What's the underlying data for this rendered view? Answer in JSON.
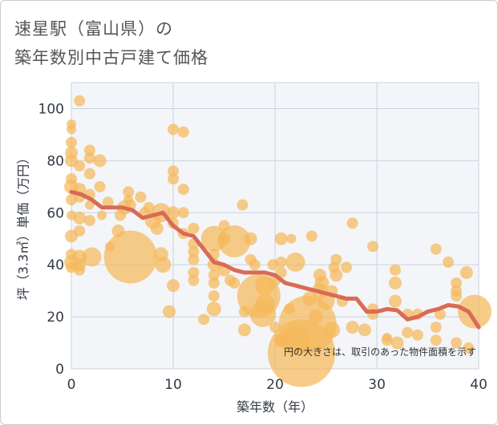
{
  "title_line1": "速星駅（富山県）の",
  "title_line2": "築年数別中古戸建て価格",
  "chart_data": {
    "type": "scatter",
    "xlabel": "築年数（年）",
    "ylabel": "坪（3.3㎡）単価（万円）",
    "xlim": [
      0,
      40
    ],
    "ylim": [
      0,
      110
    ],
    "x_ticks": [
      0,
      10,
      20,
      30,
      40
    ],
    "y_ticks": [
      0,
      20,
      40,
      60,
      80,
      100
    ],
    "grid": true,
    "note": "円の大きさは、取引のあった物件面積を示す",
    "colors": {
      "bubble": "#f5b85a",
      "line": "#d96b55",
      "grid": "#c9d4e0",
      "plot_bg": "#f3f5f8"
    },
    "trend": {
      "x": [
        0,
        1,
        2,
        3,
        4,
        5,
        6,
        7,
        8,
        9,
        10,
        11,
        12,
        13,
        14,
        15,
        16,
        17,
        18,
        19,
        20,
        21,
        22,
        23,
        24,
        25,
        26,
        27,
        28,
        29,
        30,
        31,
        32,
        33,
        34,
        35,
        36,
        37,
        38,
        39,
        40
      ],
      "y": [
        68,
        67,
        65,
        62,
        62,
        62,
        61,
        58,
        59,
        60,
        55,
        52,
        51,
        46,
        41,
        40,
        38,
        37,
        37,
        37,
        36,
        33,
        32,
        31,
        30,
        29,
        28,
        27,
        27,
        22,
        22,
        23,
        22.5,
        19,
        20,
        22,
        23,
        24.5,
        24,
        22,
        16
      ]
    },
    "points": [
      {
        "x": 0,
        "y": 94,
        "s": 6
      },
      {
        "x": 0,
        "y": 92,
        "s": 6
      },
      {
        "x": 0,
        "y": 87,
        "s": 7
      },
      {
        "x": 0,
        "y": 83,
        "s": 8
      },
      {
        "x": 0,
        "y": 80,
        "s": 8
      },
      {
        "x": 0,
        "y": 73,
        "s": 7
      },
      {
        "x": 0,
        "y": 70,
        "s": 9
      },
      {
        "x": 0,
        "y": 65,
        "s": 7
      },
      {
        "x": 0,
        "y": 59,
        "s": 6
      },
      {
        "x": 0,
        "y": 51,
        "s": 8
      },
      {
        "x": 0,
        "y": 44,
        "s": 7
      },
      {
        "x": 0,
        "y": 41,
        "s": 9
      },
      {
        "x": 0,
        "y": 39,
        "s": 7
      },
      {
        "x": 0.8,
        "y": 103,
        "s": 7
      },
      {
        "x": 0.8,
        "y": 78,
        "s": 7
      },
      {
        "x": 0.8,
        "y": 69,
        "s": 8
      },
      {
        "x": 0.8,
        "y": 66,
        "s": 7
      },
      {
        "x": 0.8,
        "y": 58,
        "s": 8
      },
      {
        "x": 0.8,
        "y": 53,
        "s": 7
      },
      {
        "x": 0.8,
        "y": 43,
        "s": 9
      },
      {
        "x": 0.8,
        "y": 40,
        "s": 8
      },
      {
        "x": 0.8,
        "y": 38,
        "s": 7
      },
      {
        "x": 1.8,
        "y": 84,
        "s": 7
      },
      {
        "x": 1.8,
        "y": 81,
        "s": 7
      },
      {
        "x": 1.8,
        "y": 75,
        "s": 7
      },
      {
        "x": 1.8,
        "y": 67,
        "s": 7
      },
      {
        "x": 1.8,
        "y": 63,
        "s": 6
      },
      {
        "x": 1.8,
        "y": 57,
        "s": 7
      },
      {
        "x": 2,
        "y": 43,
        "s": 12
      },
      {
        "x": 2.8,
        "y": 80,
        "s": 8
      },
      {
        "x": 2.8,
        "y": 70,
        "s": 7
      },
      {
        "x": 3,
        "y": 59,
        "s": 6
      },
      {
        "x": 3.6,
        "y": 64,
        "s": 7
      },
      {
        "x": 3.8,
        "y": 47,
        "s": 6
      },
      {
        "x": 4.6,
        "y": 53,
        "s": 8
      },
      {
        "x": 4.8,
        "y": 59,
        "s": 7
      },
      {
        "x": 5.2,
        "y": 62,
        "s": 9
      },
      {
        "x": 5.6,
        "y": 65,
        "s": 6
      },
      {
        "x": 5.6,
        "y": 68,
        "s": 7
      },
      {
        "x": 5.8,
        "y": 63,
        "s": 7
      },
      {
        "x": 5.8,
        "y": 43,
        "s": 33
      },
      {
        "x": 6.8,
        "y": 66,
        "s": 7
      },
      {
        "x": 7.2,
        "y": 60,
        "s": 7
      },
      {
        "x": 7.6,
        "y": 62,
        "s": 7
      },
      {
        "x": 8,
        "y": 57,
        "s": 10
      },
      {
        "x": 8.4,
        "y": 54,
        "s": 8
      },
      {
        "x": 8.8,
        "y": 60,
        "s": 12
      },
      {
        "x": 8.8,
        "y": 44,
        "s": 9
      },
      {
        "x": 9,
        "y": 40,
        "s": 10
      },
      {
        "x": 9.6,
        "y": 22,
        "s": 8
      },
      {
        "x": 10,
        "y": 92,
        "s": 7
      },
      {
        "x": 10,
        "y": 76,
        "s": 7
      },
      {
        "x": 10,
        "y": 73,
        "s": 7
      },
      {
        "x": 10,
        "y": 60,
        "s": 8
      },
      {
        "x": 10,
        "y": 56,
        "s": 7
      },
      {
        "x": 10,
        "y": 32,
        "s": 8
      },
      {
        "x": 11,
        "y": 91,
        "s": 7
      },
      {
        "x": 11,
        "y": 69,
        "s": 7
      },
      {
        "x": 11,
        "y": 60,
        "s": 7
      },
      {
        "x": 11,
        "y": 52,
        "s": 7
      },
      {
        "x": 12,
        "y": 54,
        "s": 7
      },
      {
        "x": 12,
        "y": 48,
        "s": 7
      },
      {
        "x": 12,
        "y": 45,
        "s": 7
      },
      {
        "x": 12,
        "y": 42,
        "s": 7
      },
      {
        "x": 12,
        "y": 37,
        "s": 7
      },
      {
        "x": 12,
        "y": 34,
        "s": 7
      },
      {
        "x": 13,
        "y": 19,
        "s": 7
      },
      {
        "x": 14,
        "y": 50,
        "s": 16
      },
      {
        "x": 14,
        "y": 44,
        "s": 7
      },
      {
        "x": 14,
        "y": 40,
        "s": 8
      },
      {
        "x": 14,
        "y": 36,
        "s": 7
      },
      {
        "x": 14,
        "y": 33,
        "s": 7
      },
      {
        "x": 14,
        "y": 28,
        "s": 7
      },
      {
        "x": 14,
        "y": 23,
        "s": 9
      },
      {
        "x": 15,
        "y": 55,
        "s": 7
      },
      {
        "x": 15,
        "y": 50,
        "s": 8
      },
      {
        "x": 15,
        "y": 38,
        "s": 8
      },
      {
        "x": 15.6,
        "y": 34,
        "s": 7
      },
      {
        "x": 16,
        "y": 49,
        "s": 20
      },
      {
        "x": 16,
        "y": 33,
        "s": 7
      },
      {
        "x": 16.8,
        "y": 63,
        "s": 7
      },
      {
        "x": 17,
        "y": 15,
        "s": 8
      },
      {
        "x": 17,
        "y": 22,
        "s": 7
      },
      {
        "x": 17.6,
        "y": 50,
        "s": 8
      },
      {
        "x": 17.6,
        "y": 42,
        "s": 7
      },
      {
        "x": 18,
        "y": 40,
        "s": 7
      },
      {
        "x": 18.4,
        "y": 28,
        "s": 27
      },
      {
        "x": 18.8,
        "y": 21,
        "s": 16
      },
      {
        "x": 19,
        "y": 32,
        "s": 12
      },
      {
        "x": 19,
        "y": 25,
        "s": 12
      },
      {
        "x": 19.8,
        "y": 40,
        "s": 7
      },
      {
        "x": 20,
        "y": 34,
        "s": 7
      },
      {
        "x": 20,
        "y": 16,
        "s": 7
      },
      {
        "x": 20.6,
        "y": 11,
        "s": 7
      },
      {
        "x": 20.6,
        "y": 50,
        "s": 8
      },
      {
        "x": 20.6,
        "y": 41,
        "s": 7
      },
      {
        "x": 20.6,
        "y": 37,
        "s": 7
      },
      {
        "x": 20.6,
        "y": 11,
        "s": 9
      },
      {
        "x": 21.4,
        "y": 23,
        "s": 7
      },
      {
        "x": 21.6,
        "y": 50,
        "s": 6
      },
      {
        "x": 22,
        "y": 41,
        "s": 12
      },
      {
        "x": 22,
        "y": 11,
        "s": 18
      },
      {
        "x": 22.6,
        "y": 6,
        "s": 42
      },
      {
        "x": 23.2,
        "y": 17,
        "s": 36
      },
      {
        "x": 23.4,
        "y": 27,
        "s": 9
      },
      {
        "x": 23.6,
        "y": 51,
        "s": 7
      },
      {
        "x": 24,
        "y": 20,
        "s": 9
      },
      {
        "x": 24.4,
        "y": 36,
        "s": 8
      },
      {
        "x": 24.4,
        "y": 30,
        "s": 10
      },
      {
        "x": 24.6,
        "y": 33,
        "s": 9
      },
      {
        "x": 25,
        "y": 26,
        "s": 11
      },
      {
        "x": 25.6,
        "y": 15,
        "s": 10
      },
      {
        "x": 25.6,
        "y": 30,
        "s": 7
      },
      {
        "x": 25.8,
        "y": 39,
        "s": 7
      },
      {
        "x": 26,
        "y": 36,
        "s": 8
      },
      {
        "x": 26,
        "y": 42,
        "s": 7
      },
      {
        "x": 26.6,
        "y": 26,
        "s": 7
      },
      {
        "x": 27,
        "y": 39,
        "s": 7
      },
      {
        "x": 27.6,
        "y": 56,
        "s": 7
      },
      {
        "x": 27.6,
        "y": 16,
        "s": 8
      },
      {
        "x": 28.8,
        "y": 15,
        "s": 8
      },
      {
        "x": 29.6,
        "y": 47,
        "s": 7
      },
      {
        "x": 29.6,
        "y": 23,
        "s": 7
      },
      {
        "x": 29.6,
        "y": 21,
        "s": 7
      },
      {
        "x": 31,
        "y": 11,
        "s": 7
      },
      {
        "x": 31,
        "y": 12,
        "s": 6
      },
      {
        "x": 31.8,
        "y": 38,
        "s": 7
      },
      {
        "x": 31.8,
        "y": 33,
        "s": 8
      },
      {
        "x": 31.8,
        "y": 26,
        "s": 8
      },
      {
        "x": 32,
        "y": 10,
        "s": 8
      },
      {
        "x": 33,
        "y": 21,
        "s": 7
      },
      {
        "x": 33,
        "y": 14,
        "s": 7
      },
      {
        "x": 34,
        "y": 13,
        "s": 7
      },
      {
        "x": 34,
        "y": 21,
        "s": 7
      },
      {
        "x": 35.8,
        "y": 46,
        "s": 7
      },
      {
        "x": 35.8,
        "y": 16,
        "s": 7
      },
      {
        "x": 35.8,
        "y": 11,
        "s": 7
      },
      {
        "x": 36.2,
        "y": 21,
        "s": 7
      },
      {
        "x": 37,
        "y": 41,
        "s": 7
      },
      {
        "x": 37.8,
        "y": 33,
        "s": 7
      },
      {
        "x": 37.8,
        "y": 30,
        "s": 7
      },
      {
        "x": 37.8,
        "y": 28,
        "s": 7
      },
      {
        "x": 37.8,
        "y": 10,
        "s": 7
      },
      {
        "x": 38.8,
        "y": 37,
        "s": 8
      },
      {
        "x": 39.6,
        "y": 22,
        "s": 21
      },
      {
        "x": 39,
        "y": 8,
        "s": 7
      }
    ]
  }
}
